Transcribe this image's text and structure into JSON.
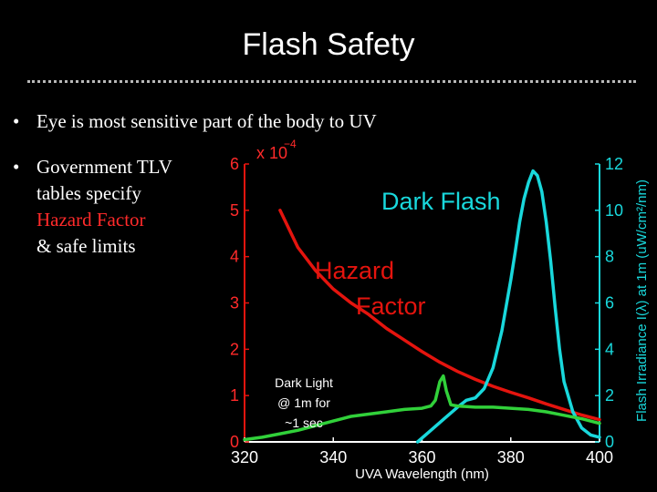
{
  "slide": {
    "title": "Flash Safety",
    "bullets": [
      {
        "marker": "•",
        "lines": [
          "Eye is most sensitive part of the body to UV"
        ]
      },
      {
        "marker": "•",
        "lines": [
          "Government TLV",
          "tables specify",
          "Hazard Factor",
          "& safe limits"
        ],
        "highlight_line": 2
      }
    ]
  },
  "chart_data": {
    "type": "line",
    "xlabel": "UVA Wavelength (nm)",
    "ylabel_right": "Flash Irradiance I(λ) at 1m (uW/cm²/nm)",
    "left_axis_multiplier": "x 10",
    "left_axis_exponent": "−4",
    "xlim": [
      320,
      400
    ],
    "ylim_left": [
      0,
      6
    ],
    "ylim_right": [
      0,
      12
    ],
    "xticks": [
      320,
      340,
      360,
      380,
      400
    ],
    "yticks_left": [
      0,
      1,
      2,
      3,
      4,
      5,
      6
    ],
    "yticks_right": [
      0,
      2,
      4,
      6,
      8,
      10,
      12
    ],
    "grid": false,
    "colors": {
      "hazard": "#e4140e",
      "dark_flash": "#19d8dc",
      "dark_light": "#31d13a",
      "left_axis": "#ff2a2a",
      "right_axis": "#19d8dc"
    },
    "annotations": {
      "dark_flash": "Dark Flash",
      "hazard": [
        "Hazard",
        "Factor"
      ],
      "dark_light": [
        "Dark Light",
        "@ 1m for",
        "~1 sec"
      ]
    },
    "series": [
      {
        "key": "hazard",
        "axis": "left",
        "x": [
          328,
          332,
          336,
          340,
          344,
          348,
          352,
          356,
          360,
          364,
          368,
          372,
          376,
          380,
          384,
          388,
          392,
          396,
          400
        ],
        "values": [
          5.0,
          4.2,
          3.7,
          3.3,
          3.0,
          2.75,
          2.45,
          2.2,
          1.95,
          1.72,
          1.52,
          1.35,
          1.2,
          1.07,
          0.95,
          0.82,
          0.7,
          0.58,
          0.48
        ]
      },
      {
        "key": "dark_flash",
        "axis": "right",
        "x": [
          359,
          362,
          365,
          368,
          370,
          372,
          374,
          376,
          378,
          380,
          381,
          382,
          383,
          384,
          385,
          386,
          387,
          388,
          389,
          390,
          391,
          392,
          394,
          396,
          398,
          400
        ],
        "values": [
          0.0,
          0.5,
          1.0,
          1.5,
          1.8,
          1.9,
          2.3,
          3.2,
          4.8,
          7.0,
          8.2,
          9.5,
          10.5,
          11.2,
          11.7,
          11.5,
          10.8,
          9.5,
          7.8,
          5.8,
          4.0,
          2.6,
          1.3,
          0.6,
          0.3,
          0.2
        ]
      },
      {
        "key": "dark_light",
        "axis": "right",
        "x": [
          320,
          324,
          328,
          332,
          336,
          340,
          342,
          344,
          348,
          352,
          356,
          360,
          362,
          363,
          364,
          364.8,
          365.5,
          366.5,
          368,
          372,
          376,
          380,
          384,
          388,
          392,
          396,
          400
        ],
        "values": [
          0.1,
          0.2,
          0.35,
          0.5,
          0.7,
          0.9,
          1.0,
          1.1,
          1.2,
          1.3,
          1.4,
          1.45,
          1.55,
          1.8,
          2.6,
          2.85,
          2.2,
          1.6,
          1.55,
          1.5,
          1.5,
          1.45,
          1.4,
          1.3,
          1.15,
          1.0,
          0.8
        ]
      }
    ]
  }
}
